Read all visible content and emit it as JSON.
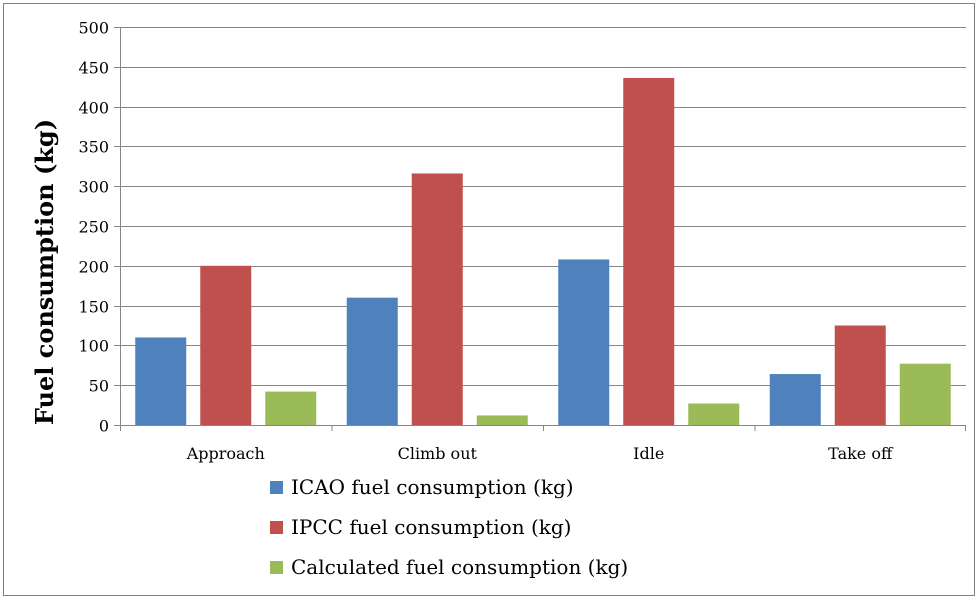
{
  "chart_data": {
    "type": "bar",
    "title": "",
    "xlabel": "",
    "ylabel": "Fuel consumption (kg)",
    "ylim": [
      0,
      500
    ],
    "yticks": [
      0,
      50,
      100,
      150,
      200,
      250,
      300,
      350,
      400,
      450,
      500
    ],
    "grid": "horizontal",
    "legend_position": "bottom",
    "categories": [
      "Approach",
      "Climb out",
      "Idle",
      "Take off"
    ],
    "series": [
      {
        "name": "ICAO fuel consumption (kg)",
        "color": "#4F81BD",
        "values": [
          110,
          160,
          208,
          64
        ]
      },
      {
        "name": "IPCC fuel consumption (kg)",
        "color": "#C0504D",
        "values": [
          200,
          316,
          436,
          125
        ]
      },
      {
        "name": "Calculated fuel consumption (kg)",
        "color": "#9BBB59",
        "values": [
          42,
          12,
          27,
          77
        ]
      }
    ]
  }
}
